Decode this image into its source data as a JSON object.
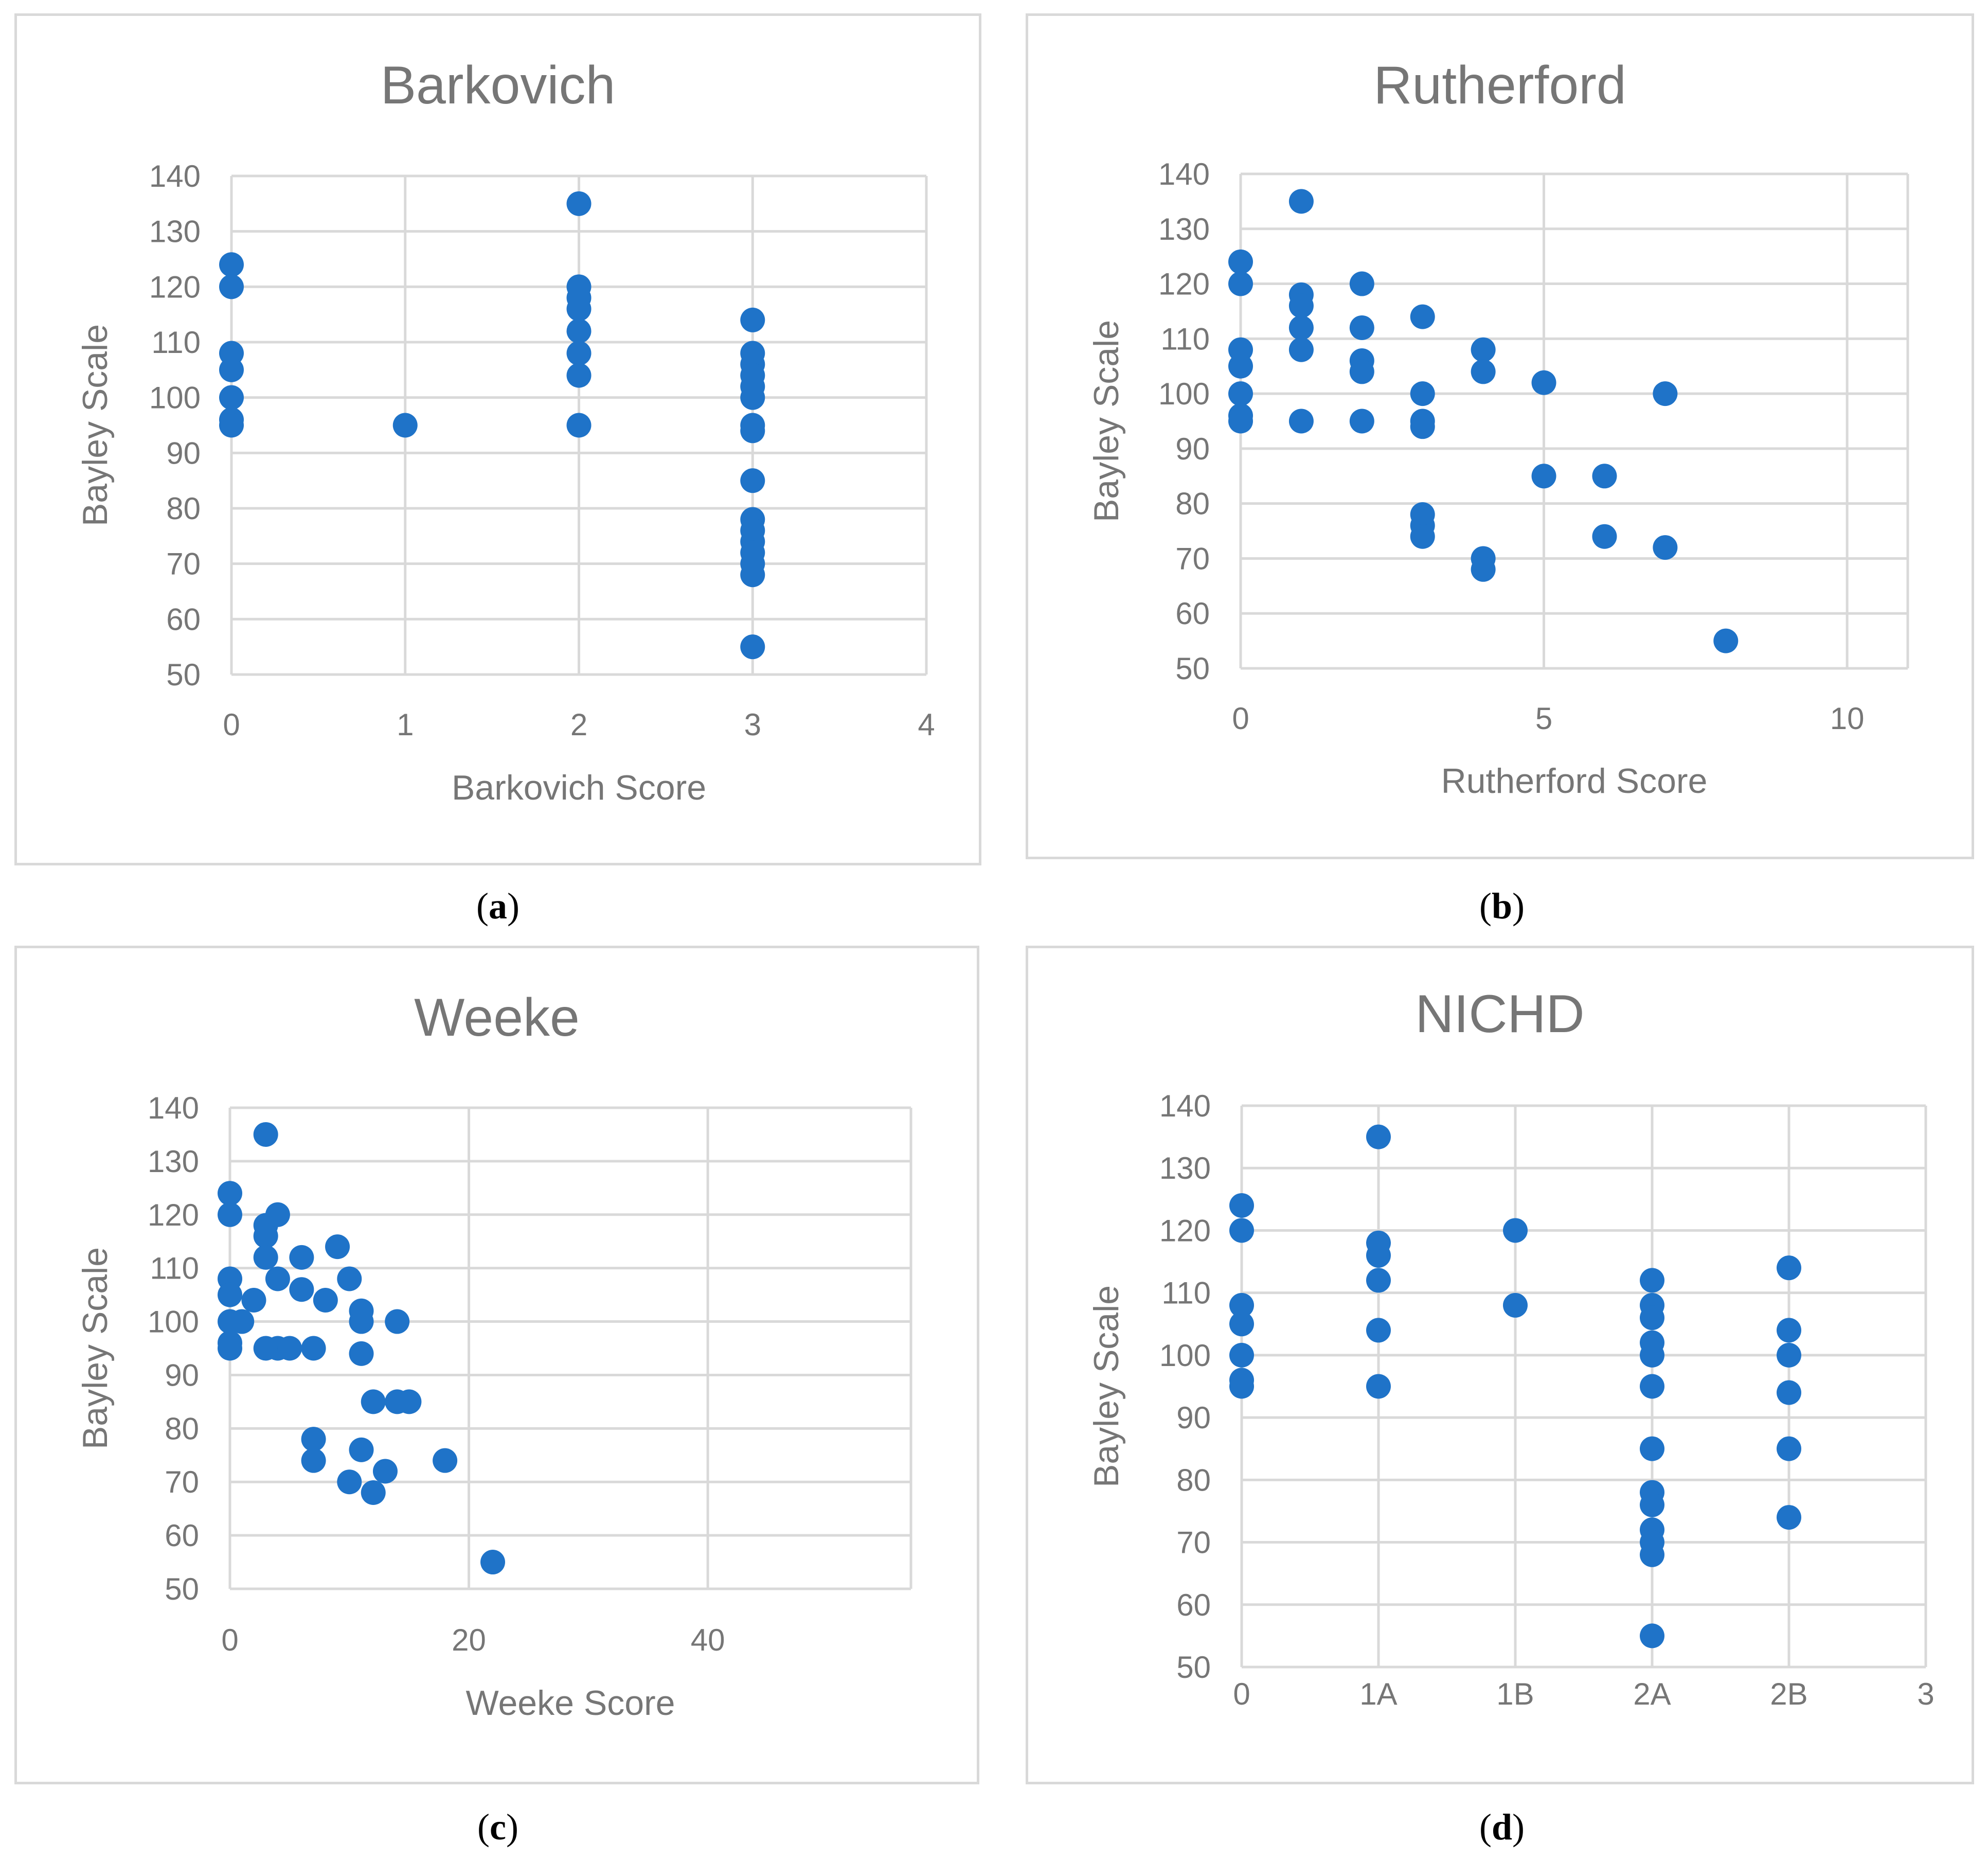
{
  "colors": {
    "dot": "#1f73c8",
    "grid": "#d9d9d9",
    "text": "#767676",
    "border": "#d9d9d9"
  },
  "captions": [
    "a",
    "b",
    "c",
    "d"
  ],
  "chart_data": [
    {
      "id": "a",
      "type": "scatter",
      "title": "Barkovich",
      "xlabel": "Barkovich Score",
      "ylabel": "Bayley Scale",
      "xlim": [
        0,
        4
      ],
      "ylim": [
        50,
        140
      ],
      "xticks": [
        0,
        1,
        2,
        3,
        4
      ],
      "xtick_labels": [
        "0",
        "1",
        "2",
        "3",
        "4"
      ],
      "yticks": [
        50,
        60,
        70,
        80,
        90,
        100,
        110,
        120,
        130,
        140
      ],
      "grid": true,
      "points": [
        [
          0,
          124
        ],
        [
          0,
          120
        ],
        [
          0,
          108
        ],
        [
          0,
          105
        ],
        [
          0,
          100
        ],
        [
          0,
          96
        ],
        [
          0,
          95
        ],
        [
          1,
          95
        ],
        [
          2,
          135
        ],
        [
          2,
          120
        ],
        [
          2,
          118
        ],
        [
          2,
          116
        ],
        [
          2,
          112
        ],
        [
          2,
          108
        ],
        [
          2,
          104
        ],
        [
          2,
          95
        ],
        [
          3,
          114
        ],
        [
          3,
          108
        ],
        [
          3,
          106
        ],
        [
          3,
          104
        ],
        [
          3,
          102
        ],
        [
          3,
          100
        ],
        [
          3,
          95
        ],
        [
          3,
          94
        ],
        [
          3,
          85
        ],
        [
          3,
          78
        ],
        [
          3,
          76
        ],
        [
          3,
          74
        ],
        [
          3,
          72
        ],
        [
          3,
          70
        ],
        [
          3,
          68
        ],
        [
          3,
          55
        ]
      ]
    },
    {
      "id": "b",
      "type": "scatter",
      "title": "Rutherford",
      "xlabel": "Rutherford Score",
      "ylabel": "Bayley Scale",
      "xlim": [
        0,
        11
      ],
      "ylim": [
        50,
        140
      ],
      "xticks": [
        0,
        5,
        10
      ],
      "xtick_labels": [
        "0",
        "5",
        "10"
      ],
      "yticks": [
        50,
        60,
        70,
        80,
        90,
        100,
        110,
        120,
        130,
        140
      ],
      "grid": true,
      "points": [
        [
          0,
          124
        ],
        [
          0,
          120
        ],
        [
          0,
          108
        ],
        [
          0,
          105
        ],
        [
          0,
          100
        ],
        [
          0,
          96
        ],
        [
          0,
          95
        ],
        [
          1,
          135
        ],
        [
          1,
          118
        ],
        [
          1,
          116
        ],
        [
          1,
          112
        ],
        [
          1,
          108
        ],
        [
          1,
          95
        ],
        [
          2,
          120
        ],
        [
          2,
          112
        ],
        [
          2,
          106
        ],
        [
          2,
          104
        ],
        [
          2,
          95
        ],
        [
          3,
          114
        ],
        [
          3,
          100
        ],
        [
          3,
          95
        ],
        [
          3,
          94
        ],
        [
          3,
          78
        ],
        [
          3,
          76
        ],
        [
          3,
          74
        ],
        [
          4,
          108
        ],
        [
          4,
          104
        ],
        [
          4,
          70
        ],
        [
          4,
          68
        ],
        [
          5,
          102
        ],
        [
          5,
          85
        ],
        [
          6,
          85
        ],
        [
          6,
          74
        ],
        [
          7,
          100
        ],
        [
          7,
          72
        ],
        [
          8,
          55
        ]
      ]
    },
    {
      "id": "c",
      "type": "scatter",
      "title": "Weeke",
      "xlabel": "Weeke Score",
      "ylabel": "Bayley Scale",
      "xlim": [
        0,
        57
      ],
      "ylim": [
        50,
        140
      ],
      "xticks": [
        0,
        20,
        40
      ],
      "xtick_labels": [
        "0",
        "20",
        "40"
      ],
      "yticks": [
        50,
        60,
        70,
        80,
        90,
        100,
        110,
        120,
        130,
        140
      ],
      "grid": true,
      "points": [
        [
          0,
          124
        ],
        [
          0,
          120
        ],
        [
          0,
          108
        ],
        [
          0,
          105
        ],
        [
          0,
          100
        ],
        [
          0,
          96
        ],
        [
          0,
          95
        ],
        [
          1,
          100
        ],
        [
          2,
          104
        ],
        [
          3,
          135
        ],
        [
          3,
          118
        ],
        [
          3,
          116
        ],
        [
          3,
          112
        ],
        [
          3,
          95
        ],
        [
          4,
          120
        ],
        [
          4,
          108
        ],
        [
          4,
          95
        ],
        [
          5,
          95
        ],
        [
          6,
          112
        ],
        [
          6,
          106
        ],
        [
          7,
          95
        ],
        [
          7,
          78
        ],
        [
          7,
          74
        ],
        [
          8,
          104
        ],
        [
          9,
          114
        ],
        [
          10,
          108
        ],
        [
          10,
          70
        ],
        [
          11,
          102
        ],
        [
          11,
          100
        ],
        [
          11,
          94
        ],
        [
          11,
          76
        ],
        [
          12,
          85
        ],
        [
          12,
          68
        ],
        [
          13,
          72
        ],
        [
          14,
          100
        ],
        [
          14,
          85
        ],
        [
          15,
          85
        ],
        [
          18,
          74
        ],
        [
          22,
          55
        ]
      ]
    },
    {
      "id": "d",
      "type": "scatter",
      "title": "NICHD",
      "xlabel": "",
      "ylabel": "Bayley Scale",
      "xlim": [
        0,
        5
      ],
      "ylim": [
        50,
        140
      ],
      "xticks": [
        0,
        1,
        2,
        3,
        4,
        5
      ],
      "xtick_labels": [
        "0",
        "1A",
        "1B",
        "2A",
        "2B",
        "3"
      ],
      "yticks": [
        50,
        60,
        70,
        80,
        90,
        100,
        110,
        120,
        130,
        140
      ],
      "grid": true,
      "points": [
        [
          0,
          124
        ],
        [
          0,
          120
        ],
        [
          0,
          108
        ],
        [
          0,
          105
        ],
        [
          0,
          100
        ],
        [
          0,
          96
        ],
        [
          0,
          95
        ],
        [
          1,
          135
        ],
        [
          1,
          118
        ],
        [
          1,
          116
        ],
        [
          1,
          112
        ],
        [
          1,
          104
        ],
        [
          1,
          95
        ],
        [
          2,
          120
        ],
        [
          2,
          108
        ],
        [
          3,
          112
        ],
        [
          3,
          108
        ],
        [
          3,
          106
        ],
        [
          3,
          102
        ],
        [
          3,
          100
        ],
        [
          3,
          95
        ],
        [
          3,
          85
        ],
        [
          3,
          78
        ],
        [
          3,
          76
        ],
        [
          3,
          72
        ],
        [
          3,
          70
        ],
        [
          3,
          68
        ],
        [
          3,
          55
        ],
        [
          4,
          114
        ],
        [
          4,
          104
        ],
        [
          4,
          100
        ],
        [
          4,
          94
        ],
        [
          4,
          85
        ],
        [
          4,
          74
        ]
      ]
    }
  ]
}
